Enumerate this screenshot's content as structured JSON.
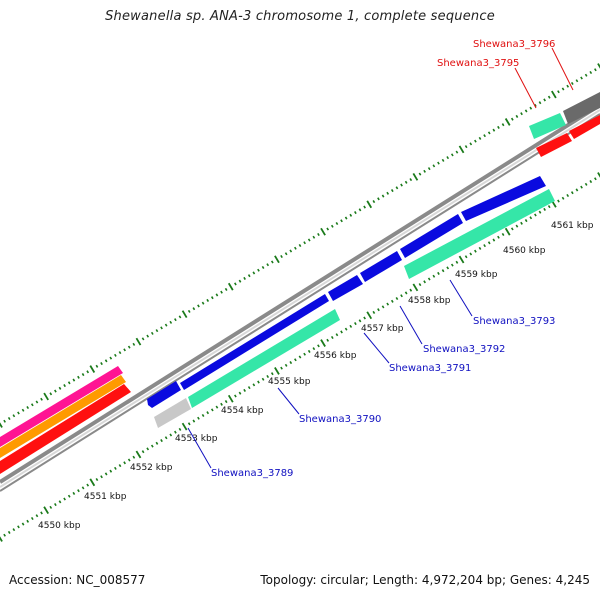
{
  "title": "Shewanella sp. ANA-3 chromosome 1, complete sequence",
  "footer": {
    "accession": "Accession: NC_008577",
    "summary": "Topology: circular; Length: 4,972,204 bp; Genes: 4,245"
  },
  "colors": {
    "backbone": "#8c8c8c",
    "tick": "#1a7a1a",
    "forward_cds": "#0a0adf",
    "reverse_cds": "#35e6a8",
    "grey_feature": "#c8c8c8",
    "dark_feature": "#6a6a6a",
    "red_feature": "#ff1010",
    "orange_feature": "#ff9a00",
    "magenta_feature": "#ff1493",
    "label_blue": "#1010c0",
    "label_red": "#e01010"
  },
  "scale": {
    "unit": "kbp",
    "ticks": [
      "4550 kbp",
      "4551 kbp",
      "4552 kbp",
      "4553 kbp",
      "4554 kbp",
      "4555 kbp",
      "4556 kbp",
      "4557 kbp",
      "4558 kbp",
      "4559 kbp",
      "4560 kbp",
      "4561 kbp"
    ]
  },
  "gene_labels": [
    {
      "name": "Shewana3_3789",
      "color": "blue"
    },
    {
      "name": "Shewana3_3790",
      "color": "blue"
    },
    {
      "name": "Shewana3_3791",
      "color": "blue"
    },
    {
      "name": "Shewana3_3792",
      "color": "blue"
    },
    {
      "name": "Shewana3_3793",
      "color": "blue"
    },
    {
      "name": "Shewana3_3795",
      "color": "red"
    },
    {
      "name": "Shewana3_3796",
      "color": "red"
    }
  ]
}
